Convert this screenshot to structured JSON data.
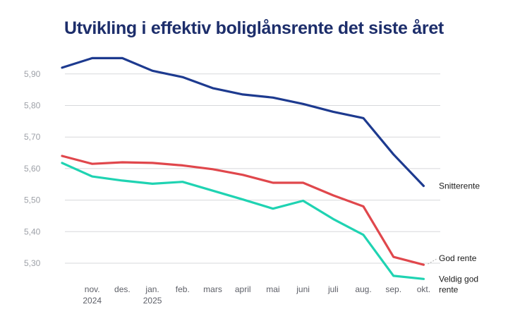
{
  "chart_data": {
    "type": "line",
    "title": "Utvikling i effektiv boliglånsrente det siste året",
    "xlabel": "",
    "ylabel": "",
    "ylim": [
      5.25,
      5.95
    ],
    "yticks": [
      "5,90",
      "5,80",
      "5,70",
      "5,60",
      "5,50",
      "5,40",
      "5,30"
    ],
    "grid": true,
    "legend": "inline-right",
    "categories": [
      [
        "okt."
      ],
      [
        "nov.",
        "2024"
      ],
      [
        "des."
      ],
      [
        "jan.",
        "2025"
      ],
      [
        "feb."
      ],
      [
        "mars"
      ],
      [
        "april"
      ],
      [
        "mai"
      ],
      [
        "juni"
      ],
      [
        "juli"
      ],
      [
        "aug."
      ],
      [
        "sep."
      ],
      [
        "okt."
      ]
    ],
    "category_labels_shown": [
      false,
      true,
      true,
      true,
      true,
      true,
      true,
      true,
      true,
      true,
      true,
      true,
      true
    ],
    "series": [
      {
        "name": "Snitterente",
        "label_lines": [
          "Snitterente"
        ],
        "color": "#1d3a8f",
        "values": [
          5.92,
          5.95,
          5.95,
          5.91,
          5.89,
          5.855,
          5.835,
          5.825,
          5.805,
          5.78,
          5.76,
          5.645,
          5.545
        ]
      },
      {
        "name": "God rente",
        "label_lines": [
          "God rente"
        ],
        "color": "#e0474c",
        "values": [
          5.64,
          5.615,
          5.62,
          5.618,
          5.61,
          5.598,
          5.58,
          5.555,
          5.555,
          5.515,
          5.48,
          5.32,
          5.295
        ]
      },
      {
        "name": "Veldig god rente",
        "label_lines": [
          "Veldig god",
          "rente"
        ],
        "color": "#1fd3b2",
        "values": [
          5.618,
          5.575,
          5.562,
          5.552,
          5.558,
          5.53,
          5.502,
          5.473,
          5.498,
          5.44,
          5.39,
          5.26,
          5.25
        ]
      }
    ]
  }
}
